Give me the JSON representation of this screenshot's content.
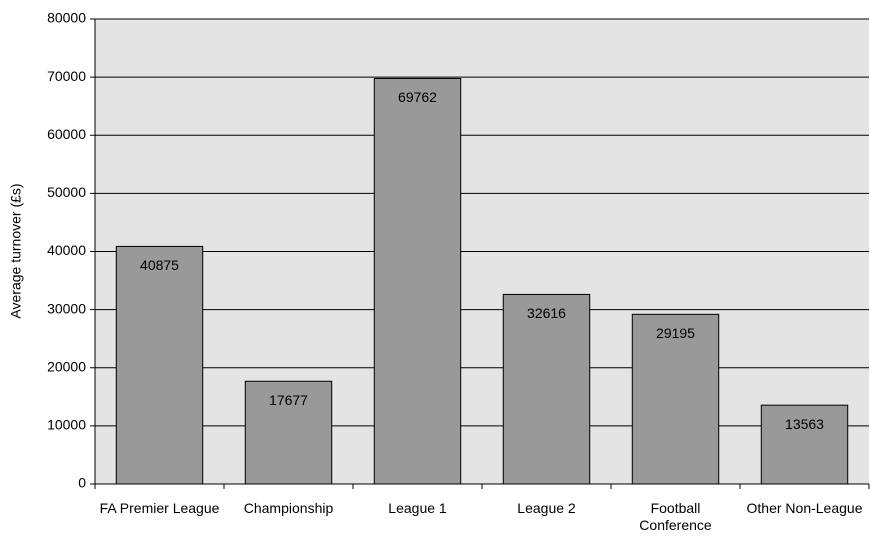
{
  "chart_data": {
    "type": "bar",
    "y_label": "Average turnover (£s)",
    "categories": [
      "FA Premier League",
      "Championship",
      "League 1",
      "League 2",
      "Football Conference",
      "Other Non-League"
    ],
    "values": [
      40875,
      17677,
      69762,
      32616,
      29195,
      13563
    ],
    "color": "#999999",
    "ylim": [
      0,
      80000
    ],
    "yticks": [
      0,
      10000,
      20000,
      30000,
      40000,
      50000,
      60000,
      70000,
      80000
    ],
    "grid": true
  }
}
